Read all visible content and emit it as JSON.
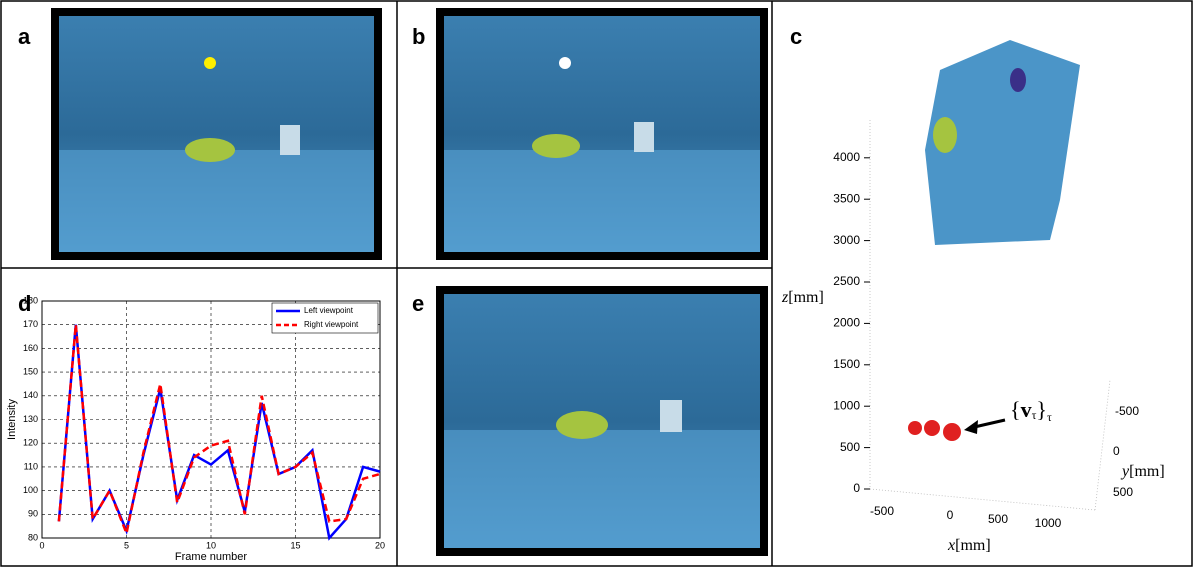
{
  "panels": {
    "labels": [
      "a",
      "b",
      "c",
      "d",
      "e"
    ]
  },
  "chart_data": {
    "type": "line",
    "xlabel": "Frame number",
    "ylabel": "Intensity",
    "x": [
      1,
      2,
      3,
      4,
      5,
      6,
      7,
      8,
      9,
      10,
      11,
      12,
      13,
      14,
      15,
      16,
      17,
      18,
      19,
      20
    ],
    "series": [
      {
        "name": "Left viewpoint",
        "color": "#0000ff",
        "dash": false,
        "values": [
          87,
          170,
          88,
          100,
          83,
          115,
          143,
          96,
          115,
          111,
          117,
          91,
          137,
          107,
          110,
          117,
          80,
          88,
          110,
          108
        ]
      },
      {
        "name": "Right viewpoint",
        "color": "#ff0000",
        "dash": true,
        "values": [
          87,
          170,
          88,
          100,
          82,
          116,
          145,
          95,
          114,
          119,
          121,
          90,
          140,
          107,
          110,
          116,
          87,
          88,
          105,
          107
        ]
      }
    ],
    "xlim": [
      0,
      20
    ],
    "xticks": [
      0,
      5,
      10,
      15,
      20
    ],
    "ylim": [
      80,
      180
    ],
    "yticks": [
      80,
      90,
      100,
      110,
      120,
      130,
      140,
      150,
      160,
      170,
      180
    ],
    "grid": true
  },
  "panel_c": {
    "zticks": [
      "0",
      "500",
      "1000",
      "1500",
      "2000",
      "2500",
      "3000",
      "3500",
      "4000"
    ],
    "xticks": [
      "-500",
      "0",
      "500",
      "1000"
    ],
    "yticks": [
      "-500",
      "0",
      "500"
    ],
    "zlabel": [
      "z",
      "[mm]"
    ],
    "xlabel": [
      "x",
      "[mm]"
    ],
    "ylabel": [
      "y",
      "[mm]"
    ],
    "annotation": [
      "{",
      "v",
      "τ",
      "}",
      "τ"
    ]
  }
}
